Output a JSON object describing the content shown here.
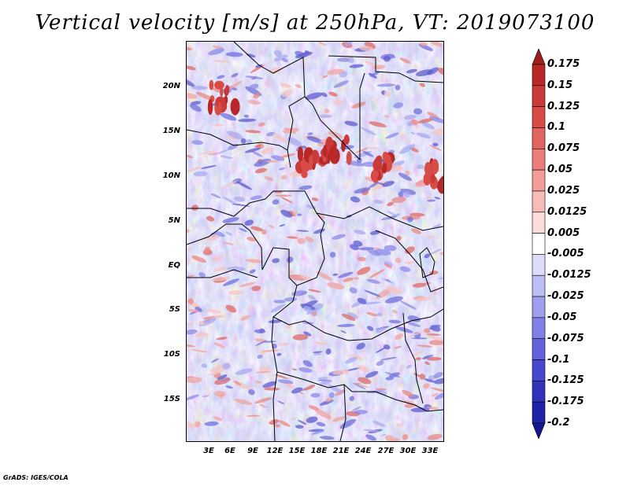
{
  "title": "Vertical velocity [m/s] at 250hPa, VT: 2019073100",
  "footer": "GrADS: IGES/COLA",
  "map": {
    "lat_ticks": [
      "20N",
      "15N",
      "10N",
      "5N",
      "EQ",
      "5S",
      "10S",
      "15S"
    ],
    "lon_ticks": [
      "3E",
      "6E",
      "9E",
      "12E",
      "15E",
      "18E",
      "21E",
      "24E",
      "27E",
      "30E",
      "33E"
    ]
  },
  "colorbar": {
    "labels": [
      "0.175",
      "0.15",
      "0.125",
      "0.1",
      "0.075",
      "0.05",
      "0.025",
      "0.0125",
      "0.005",
      "-0.005",
      "-0.0125",
      "-0.025",
      "-0.05",
      "-0.075",
      "-0.1",
      "-0.125",
      "-0.175",
      "-0.2"
    ],
    "colors": [
      "#a11e1e",
      "#b82828",
      "#c93a38",
      "#d84c48",
      "#e26461",
      "#ec7e7a",
      "#f39d98",
      "#f7bcb7",
      "#fbdcd9",
      "#ffffff",
      "#dcdcfb",
      "#bdbdf5",
      "#9f9fee",
      "#8080e6",
      "#6363db",
      "#4848cc",
      "#3232bb",
      "#2222a6",
      "#151590"
    ]
  }
}
